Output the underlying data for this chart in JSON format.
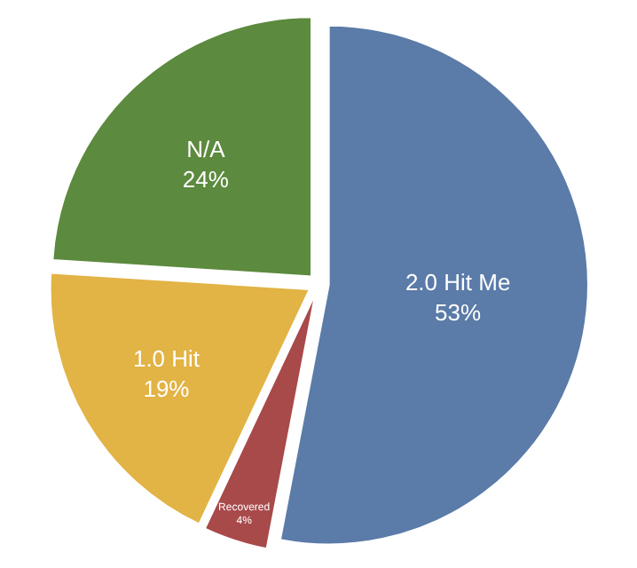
{
  "chart_data": {
    "type": "pie",
    "categories": [
      "2.0 Hit Me",
      "Recovered",
      "1.0 Hit",
      "N/A"
    ],
    "values": [
      53,
      4,
      19,
      24
    ],
    "value_labels": [
      "53%",
      "4%",
      "19%",
      "24%"
    ],
    "colors": [
      "#5b7ba8",
      "#a8494a",
      "#e2b345",
      "#5c8a3e"
    ],
    "legend": false
  }
}
